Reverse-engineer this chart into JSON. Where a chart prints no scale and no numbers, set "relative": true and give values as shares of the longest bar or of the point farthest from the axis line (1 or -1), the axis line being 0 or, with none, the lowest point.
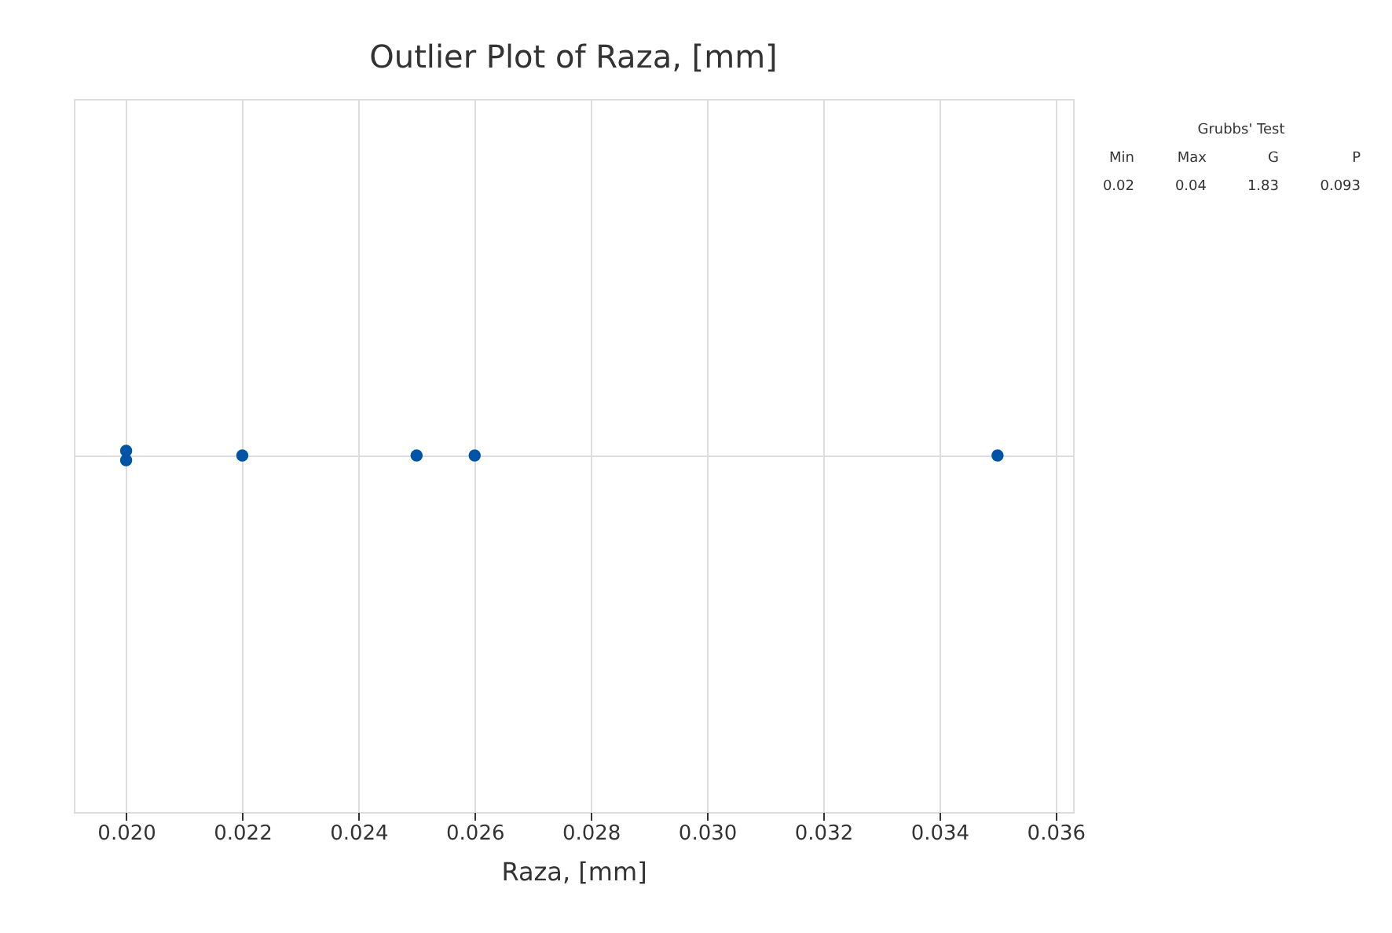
{
  "chart_data": {
    "type": "scatter",
    "title": "Outlier Plot of Raza, [mm]",
    "xlabel": "Raza, [mm]",
    "x": [
      0.02,
      0.02,
      0.022,
      0.025,
      0.026,
      0.035
    ],
    "series": [
      {
        "color": "#0054a6",
        "values": [
          1,
          -1,
          0,
          0,
          0,
          0
        ]
      }
    ],
    "relative": true,
    "xlim": [
      0.0191,
      0.0363
    ],
    "xticks": [
      {
        "value": 0.02,
        "label": "0.020"
      },
      {
        "value": 0.022,
        "label": "0.022"
      },
      {
        "value": 0.024,
        "label": "0.024"
      },
      {
        "value": 0.026,
        "label": "0.026"
      },
      {
        "value": 0.028,
        "label": "0.028"
      },
      {
        "value": 0.03,
        "label": "0.030"
      },
      {
        "value": 0.032,
        "label": "0.032"
      },
      {
        "value": 0.034,
        "label": "0.034"
      },
      {
        "value": 0.036,
        "label": "0.036"
      }
    ],
    "grid": true,
    "marker": "circle",
    "annotations": [
      "Grubbs' Test",
      "Min",
      "Max",
      "G",
      "P",
      "0.02",
      "0.04",
      "1.83",
      "0.093"
    ]
  }
}
